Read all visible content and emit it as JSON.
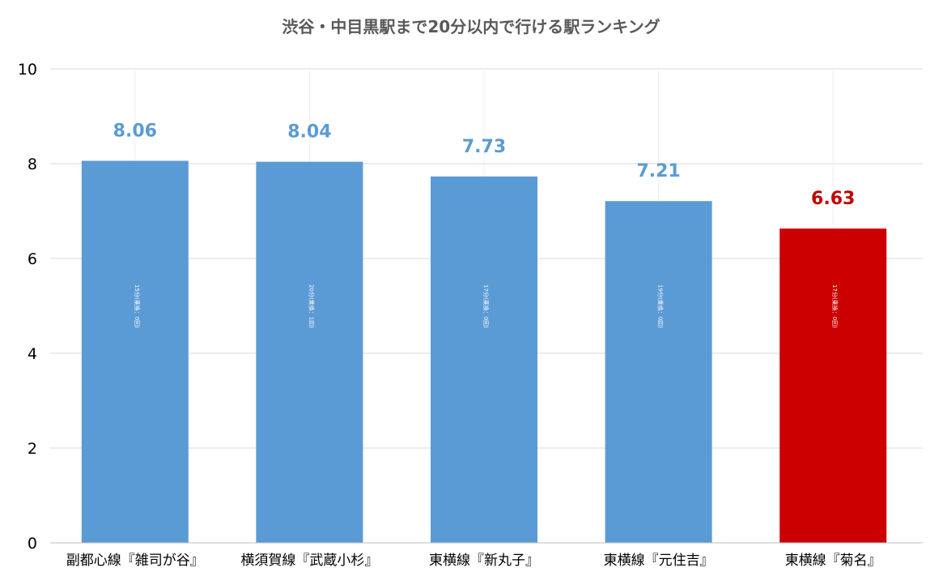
{
  "chart_data": {
    "type": "bar",
    "title": "渋谷・中目黒駅まで20分以内で行ける駅ランキング",
    "categories": [
      "副都心線『雑司が谷』",
      "横須賀線『武蔵小杉』",
      "東横線『新丸子』",
      "東横線『元住吉』",
      "東横線『菊名』"
    ],
    "values": [
      8.06,
      8.04,
      7.73,
      7.21,
      6.63
    ],
    "value_labels": [
      "8.06",
      "8.04",
      "7.73",
      "7.21",
      "6.63"
    ],
    "bar_colors": [
      "#5b9bd5",
      "#5b9bd5",
      "#5b9bd5",
      "#5b9bd5",
      "#cc0000"
    ],
    "label_colors": [
      "#5b9bd5",
      "#5b9bd5",
      "#5b9bd5",
      "#5b9bd5",
      "#c00000"
    ],
    "inner_labels": [
      "15分(乗換：0回)",
      "20分(乗換：1回)",
      "17分(乗換：0回)",
      "19分(乗換：0回)",
      "17分(乗換：0回)"
    ],
    "xlabel": "",
    "ylabel": "",
    "ylim": [
      0,
      10
    ],
    "yticks": [
      "0",
      "2",
      "4",
      "6",
      "8",
      "10"
    ],
    "grid": true,
    "legend": "none"
  },
  "colors": {
    "title": "#595959",
    "axis_text": "#000000",
    "grid": "#d9d9d9",
    "axis_line": "#bfbfbf"
  }
}
